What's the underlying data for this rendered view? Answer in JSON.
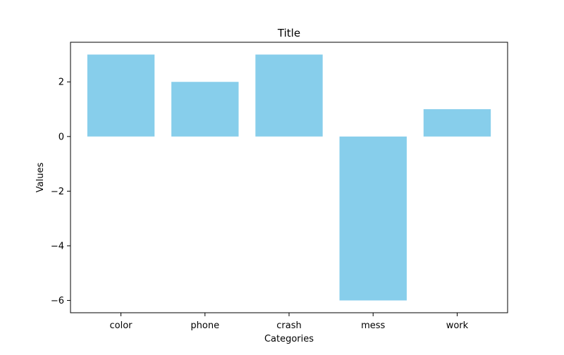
{
  "chart_data": {
    "type": "bar",
    "title": "Title",
    "xlabel": "Categories",
    "ylabel": "Values",
    "categories": [
      "color",
      "phone",
      "crash",
      "mess",
      "work"
    ],
    "values": [
      3,
      2,
      3,
      -6,
      1
    ],
    "ylim": [
      -6.45,
      3.45
    ],
    "yticks": [
      -6,
      -4,
      -2,
      0,
      2
    ],
    "ytick_labels": [
      "−6",
      "−4",
      "−2",
      "0",
      "2"
    ],
    "bar_color": "#87ceeb",
    "grid": false,
    "legend": "none"
  }
}
